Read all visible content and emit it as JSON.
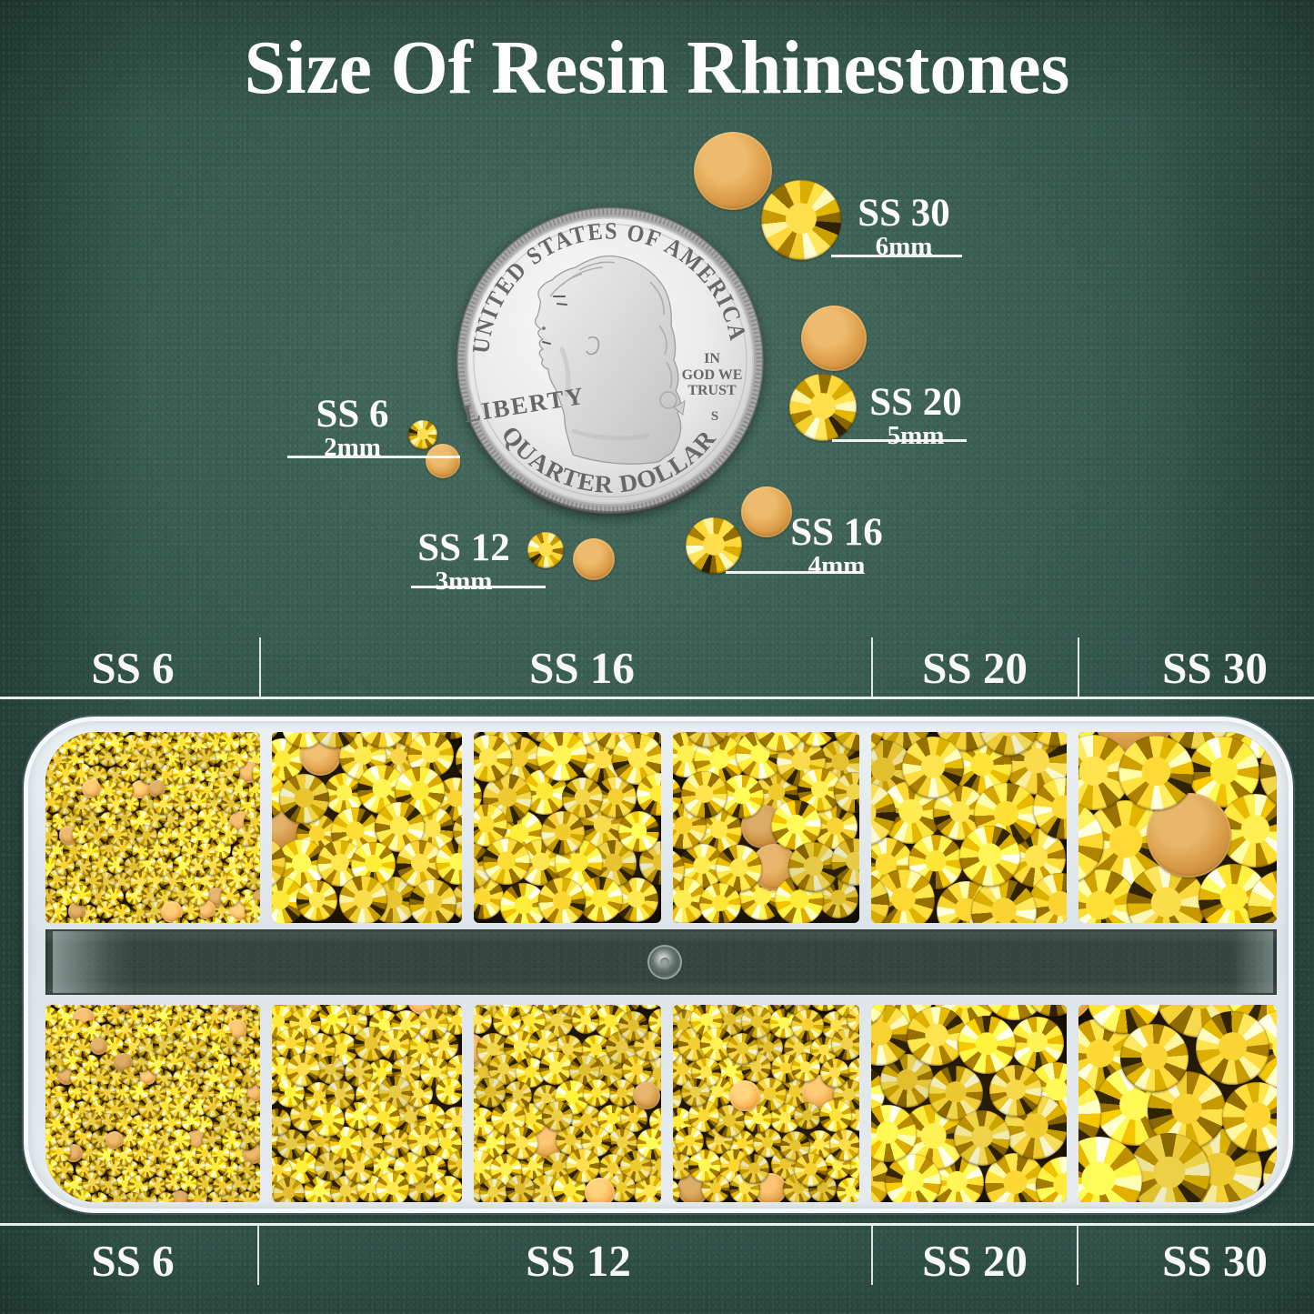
{
  "title": "Size Of Resin Rhinestones",
  "coin": {
    "top_arc": "UNITED STATES OF AMERICA",
    "liberty": "LIBERTY",
    "motto": [
      "IN",
      "GOD WE",
      "TRUST"
    ],
    "mint_mark": "S",
    "bottom_arc": "QUARTER DOLLAR"
  },
  "callouts": {
    "ss6": {
      "label": "SS 6",
      "size": "2mm"
    },
    "ss12": {
      "label": "SS 12",
      "size": "3mm"
    },
    "ss16": {
      "label": "SS 16",
      "size": "4mm"
    },
    "ss20": {
      "label": "SS 20",
      "size": "5mm"
    },
    "ss30": {
      "label": "SS 30",
      "size": "6mm"
    }
  },
  "top_section_labels": [
    {
      "label": "SS 6"
    },
    {
      "label": "SS 16"
    },
    {
      "label": "SS 20"
    },
    {
      "label": "SS 30"
    }
  ],
  "bottom_section_labels": [
    {
      "label": "SS 6"
    },
    {
      "label": "SS 12"
    },
    {
      "label": "SS 20"
    },
    {
      "label": "SS 30"
    }
  ],
  "box": {
    "top_compartments": [
      "SS 6",
      "SS 16",
      "SS 16",
      "SS 16",
      "SS 20",
      "SS 30"
    ],
    "bottom_compartments": [
      "SS 6",
      "SS 12",
      "SS 12",
      "SS 12",
      "SS 20",
      "SS 30"
    ]
  },
  "colors": {
    "background_felt": "#315349",
    "stone_yellow": "#ffd93b",
    "stone_flatback": "#d89a43",
    "box_plastic": "#e4eaee",
    "window_tint": "#35463f",
    "coin_silver": "#dcdcdc",
    "text": "#ffffff"
  }
}
